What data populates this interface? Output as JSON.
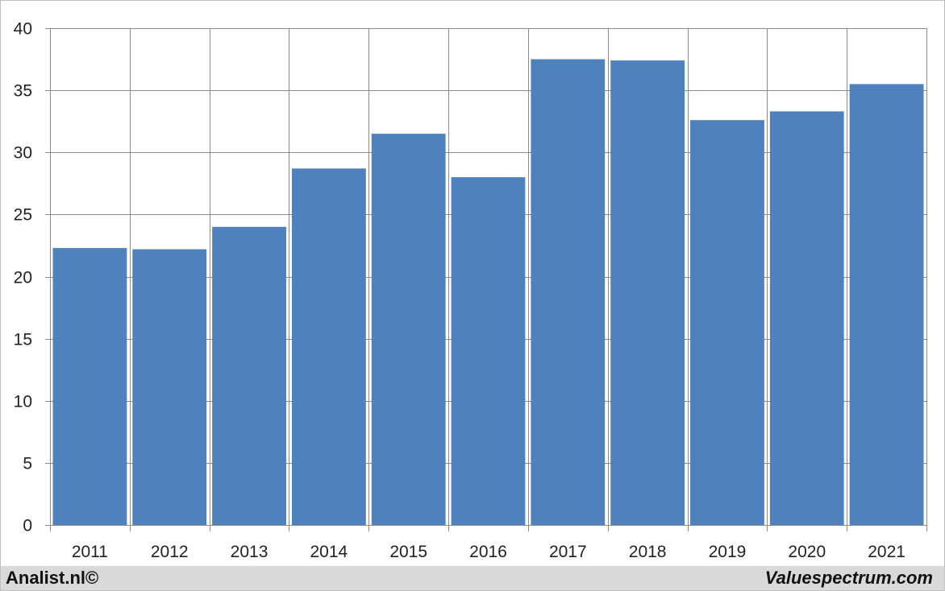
{
  "chart_data": {
    "type": "bar",
    "categories": [
      "2011",
      "2012",
      "2013",
      "2014",
      "2015",
      "2016",
      "2017",
      "2018",
      "2019",
      "2020",
      "2021"
    ],
    "values": [
      22.3,
      22.2,
      24.0,
      28.7,
      31.5,
      28.0,
      37.5,
      37.4,
      32.6,
      33.3,
      35.5
    ],
    "title": "",
    "xlabel": "",
    "ylabel": "",
    "ylim": [
      0,
      40
    ],
    "yticks": [
      "0",
      "5",
      "10",
      "15",
      "20",
      "25",
      "30",
      "35",
      "40"
    ],
    "grid": true,
    "legend": "none"
  },
  "colors": {
    "bar": "#4f81bd",
    "grid": "#8c8c8c",
    "footer_bg": "#d9d9d9"
  },
  "footer": {
    "left_text": "Analist.nl©",
    "right_text": "Valuespectrum.com"
  }
}
